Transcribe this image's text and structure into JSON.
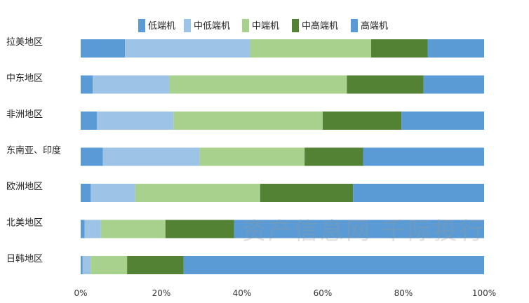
{
  "chart_data": {
    "type": "bar",
    "orientation": "horizontal",
    "stacked": true,
    "percent": true,
    "categories": [
      "拉美地区",
      "中东地区",
      "非洲地区",
      "东南亚、印度",
      "欧洲地区",
      "北美地区",
      "日韩地区"
    ],
    "series": [
      {
        "name": "低端机",
        "color": "#5b9bd5",
        "values": [
          11,
          3,
          4,
          5.5,
          2.5,
          1,
          0.5
        ]
      },
      {
        "name": "中低端机",
        "color": "#9dc3e6",
        "values": [
          31,
          19,
          19,
          24,
          11,
          4,
          2
        ]
      },
      {
        "name": "中端机",
        "color": "#a9d18e",
        "values": [
          30,
          44,
          37,
          26,
          31,
          16,
          9
        ]
      },
      {
        "name": "中高端机",
        "color": "#548235",
        "values": [
          14,
          19,
          19.5,
          14.5,
          23,
          17,
          14
        ]
      },
      {
        "name": "高端机",
        "color": "#5b9bd5",
        "values": [
          14,
          15,
          20.5,
          30,
          32.5,
          62,
          74.5
        ]
      }
    ],
    "x_ticks": [
      "0%",
      "20%",
      "40%",
      "60%",
      "80%",
      "100%"
    ],
    "xlim": [
      0,
      100
    ],
    "grid": false,
    "legend_position": "top"
  },
  "watermark": "资产信息网 千际投行"
}
